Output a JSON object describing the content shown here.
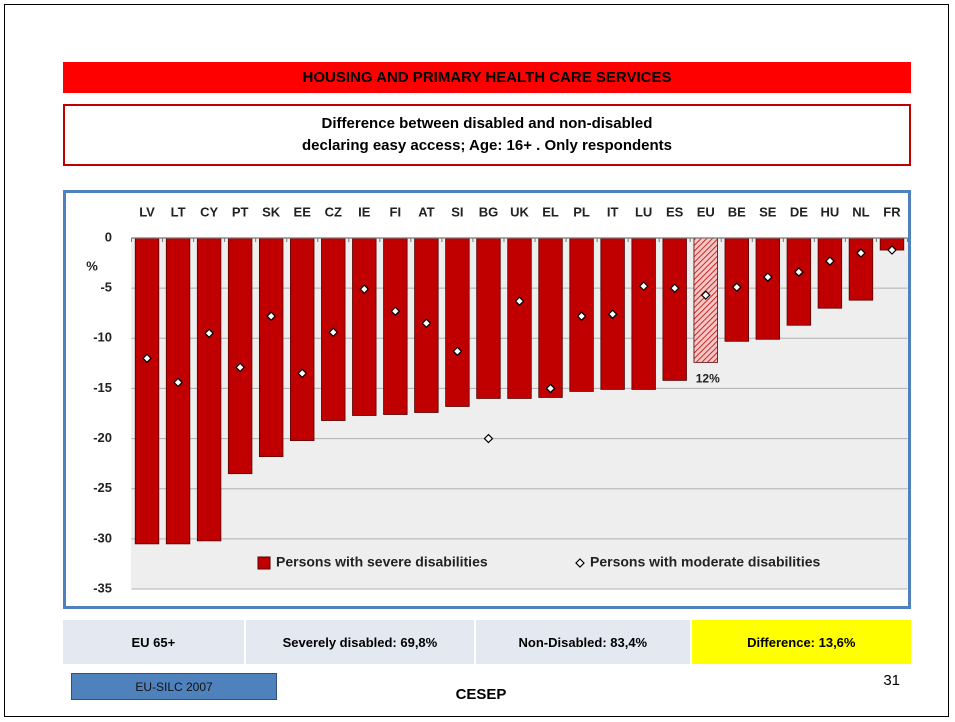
{
  "header": {
    "title": "HOUSING AND PRIMARY HEALTH CARE SERVICES",
    "subtitle_lines": [
      "Difference between disabled and non-disabled",
      "declaring easy access; Age: 16+ . Only respondents"
    ]
  },
  "chart_data": {
    "type": "bar",
    "y_label": "%",
    "categories": [
      "LV",
      "LT",
      "CY",
      "PT",
      "SK",
      "EE",
      "CZ",
      "IE",
      "FI",
      "AT",
      "SI",
      "BG",
      "UK",
      "EL",
      "PL",
      "IT",
      "LU",
      "ES",
      "EU",
      "BE",
      "SE",
      "DE",
      "HU",
      "NL",
      "FR"
    ],
    "series": [
      {
        "name": "Persons with severe disabilities",
        "color": "#c00000",
        "marker": "bar",
        "values": [
          -30.5,
          -30.5,
          -30.2,
          -23.5,
          -21.8,
          -20.2,
          -18.2,
          -17.7,
          -17.6,
          -17.4,
          -16.8,
          -16.0,
          -16.0,
          -15.9,
          -15.3,
          -15.1,
          -15.1,
          -14.2,
          -12.4,
          -10.3,
          -10.1,
          -8.7,
          -7.0,
          -6.2,
          -1.2
        ]
      },
      {
        "name": "Persons with moderate disabilities",
        "color": "#ffffff",
        "marker": "diamond",
        "values": [
          -12.0,
          -14.4,
          -9.5,
          -12.9,
          -7.8,
          -13.5,
          -9.4,
          -5.1,
          -7.3,
          -8.5,
          -11.3,
          -20.0,
          -6.3,
          -15.0,
          -7.8,
          -7.6,
          -4.8,
          -5.0,
          -5.7,
          -4.9,
          -3.9,
          -3.4,
          -2.3,
          -1.5,
          -1.2
        ]
      }
    ],
    "ylim": [
      -35,
      0
    ],
    "yticks": [
      0,
      -5,
      -10,
      -15,
      -20,
      -25,
      -30,
      -35
    ],
    "grid": true,
    "highlight": {
      "category": "EU",
      "pattern": "hatch"
    },
    "annotations": [
      {
        "text": "12%",
        "category": "EU"
      }
    ],
    "legend": "bottom"
  },
  "summary_table": {
    "cells": [
      "EU 65+",
      "Severely disabled: 69,8%",
      "Non-Disabled: 83,4%",
      "Difference: 13,6%"
    ],
    "highlight_color": "#ffff00"
  },
  "footer": {
    "source": "EU-SILC 2007",
    "organization": "CESEP",
    "page": "31"
  }
}
